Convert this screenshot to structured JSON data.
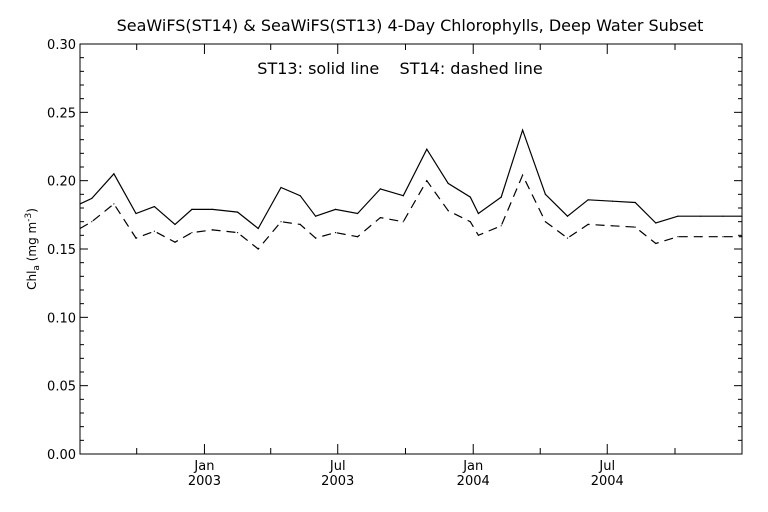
{
  "chart_data": {
    "type": "line",
    "title": "SeaWiFS(ST14) & SeaWiFS(ST13) 4-Day Chlorophylls, Deep Water Subset",
    "annotation": "ST13: solid line    ST14: dashed line",
    "ylabel": "Chl",
    "ylabel_sub": "a",
    "ylabel_unit": " (mg m",
    "ylabel_sup": "-3",
    "ylabel_close": ")",
    "ylim": [
      0.0,
      0.3
    ],
    "yticks": [
      "0.00",
      "0.05",
      "0.10",
      "0.15",
      "0.20",
      "0.25",
      "0.30"
    ],
    "xticks": [
      {
        "label": "Jan",
        "year": "2003"
      },
      {
        "label": "Jul",
        "year": "2003"
      },
      {
        "label": "Jan",
        "year": "2004"
      },
      {
        "label": "Jul",
        "year": "2004"
      }
    ],
    "x": [
      "2002-07-16",
      "2002-08-01",
      "2002-08-31",
      "2002-09-30",
      "2002-10-25",
      "2002-11-22",
      "2002-12-15",
      "2003-01-12",
      "2003-02-15",
      "2003-03-15",
      "2003-04-15",
      "2003-05-11",
      "2003-06-01",
      "2003-06-28",
      "2003-07-28",
      "2003-08-28",
      "2003-09-28",
      "2003-10-30",
      "2003-11-28",
      "2003-12-28",
      "2004-01-08",
      "2004-02-08",
      "2004-03-08",
      "2004-04-08",
      "2004-05-08",
      "2004-06-05",
      "2004-07-08",
      "2004-08-08",
      "2004-09-05",
      "2004-10-05",
      "2004-11-05",
      "2004-12-05",
      "2004-12-31"
    ],
    "series": [
      {
        "name": "ST13",
        "style": "solid",
        "color": "#000000",
        "values": [
          0.183,
          0.187,
          0.205,
          0.176,
          0.181,
          0.168,
          0.179,
          0.179,
          0.177,
          0.165,
          0.195,
          0.189,
          0.174,
          0.179,
          0.176,
          0.194,
          0.189,
          0.223,
          0.198,
          0.188,
          0.176,
          0.188,
          0.237,
          0.19,
          0.174,
          0.186,
          0.185,
          0.184,
          0.169,
          0.174,
          0.174,
          0.174,
          0.174
        ]
      },
      {
        "name": "ST14",
        "style": "dashed",
        "color": "#000000",
        "values": [
          0.165,
          0.17,
          0.183,
          0.158,
          0.163,
          0.155,
          0.162,
          0.164,
          0.162,
          0.15,
          0.17,
          0.168,
          0.158,
          0.162,
          0.159,
          0.173,
          0.17,
          0.2,
          0.178,
          0.17,
          0.16,
          0.167,
          0.204,
          0.17,
          0.158,
          0.168,
          0.167,
          0.166,
          0.154,
          0.159,
          0.159,
          0.159,
          0.159
        ]
      }
    ]
  }
}
